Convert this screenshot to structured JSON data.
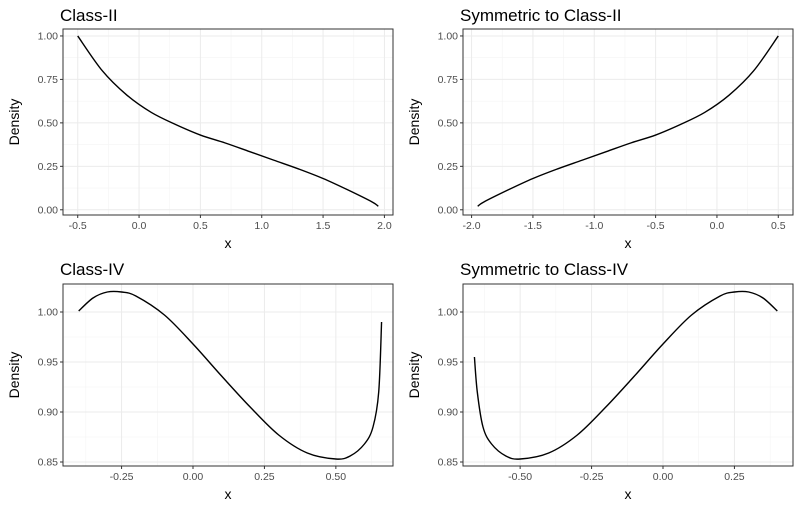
{
  "chart_data": [
    {
      "type": "line",
      "title": "Class-II",
      "xlabel": "x",
      "ylabel": "Density",
      "xlim": [
        -0.62,
        2.07
      ],
      "ylim": [
        -0.03,
        1.04
      ],
      "xticks": [
        -0.5,
        0.0,
        0.5,
        1.0,
        1.5,
        2.0
      ],
      "xtick_labels": [
        "-0.5",
        "0.0",
        "0.5",
        "1.0",
        "1.5",
        "2.0"
      ],
      "yticks": [
        0.0,
        0.25,
        0.5,
        0.75,
        1.0
      ],
      "ytick_labels": [
        "0.00",
        "0.25",
        "0.50",
        "0.75",
        "1.00"
      ],
      "grid": true,
      "series": [
        {
          "x": [
            -0.5,
            -0.3,
            -0.1,
            0.1,
            0.3,
            0.5,
            0.7,
            0.9,
            1.1,
            1.3,
            1.5,
            1.7,
            1.9,
            1.95
          ],
          "y": [
            1.0,
            0.8,
            0.66,
            0.56,
            0.49,
            0.43,
            0.385,
            0.335,
            0.285,
            0.235,
            0.18,
            0.115,
            0.045,
            0.02
          ]
        }
      ]
    },
    {
      "type": "line",
      "title": "Symmetric to Class-II",
      "xlabel": "x",
      "ylabel": "Density",
      "xlim": [
        -2.07,
        0.62
      ],
      "ylim": [
        -0.03,
        1.04
      ],
      "xticks": [
        -2.0,
        -1.5,
        -1.0,
        -0.5,
        0.0,
        0.5
      ],
      "xtick_labels": [
        "-2.0",
        "-1.5",
        "-1.0",
        "-0.5",
        "0.0",
        "0.5"
      ],
      "yticks": [
        0.0,
        0.25,
        0.5,
        0.75,
        1.0
      ],
      "ytick_labels": [
        "0.00",
        "0.25",
        "0.50",
        "0.75",
        "1.00"
      ],
      "grid": true,
      "series": [
        {
          "x": [
            -1.95,
            -1.9,
            -1.7,
            -1.5,
            -1.3,
            -1.1,
            -0.9,
            -0.7,
            -0.5,
            -0.3,
            -0.1,
            0.1,
            0.3,
            0.5
          ],
          "y": [
            0.02,
            0.045,
            0.115,
            0.18,
            0.235,
            0.285,
            0.335,
            0.385,
            0.43,
            0.49,
            0.56,
            0.66,
            0.8,
            1.0
          ]
        }
      ]
    },
    {
      "type": "line",
      "title": "Class-IV",
      "xlabel": "x",
      "ylabel": "Density",
      "xlim": [
        -0.455,
        0.7
      ],
      "ylim": [
        0.846,
        1.028
      ],
      "xticks": [
        -0.25,
        0.0,
        0.25,
        0.5
      ],
      "xtick_labels": [
        "-0.25",
        "0.00",
        "0.25",
        "0.50"
      ],
      "yticks": [
        0.85,
        0.9,
        0.95,
        1.0
      ],
      "ytick_labels": [
        "0.85",
        "0.90",
        "0.95",
        "1.00"
      ],
      "grid": true,
      "series": [
        {
          "x": [
            -0.4,
            -0.35,
            -0.3,
            -0.25,
            -0.2,
            -0.1,
            0.0,
            0.1,
            0.2,
            0.3,
            0.4,
            0.5,
            0.55,
            0.6,
            0.63,
            0.65,
            0.66
          ],
          "y": [
            1.001,
            1.014,
            1.02,
            1.02,
            1.016,
            0.997,
            0.968,
            0.936,
            0.905,
            0.877,
            0.859,
            0.853,
            0.856,
            0.868,
            0.885,
            0.92,
            0.99
          ]
        }
      ]
    },
    {
      "type": "line",
      "title": "Symmetric to Class-IV",
      "xlabel": "x",
      "ylabel": "Density",
      "xlim": [
        -0.7,
        0.455
      ],
      "ylim": [
        0.846,
        1.028
      ],
      "xticks": [
        -0.5,
        -0.25,
        0.0,
        0.25
      ],
      "xtick_labels": [
        "-0.50",
        "-0.25",
        "0.00",
        "0.25"
      ],
      "yticks": [
        0.85,
        0.9,
        0.95,
        1.0
      ],
      "ytick_labels": [
        "0.85",
        "0.90",
        "0.95",
        "1.00"
      ],
      "grid": true,
      "series": [
        {
          "x": [
            -0.66,
            -0.65,
            -0.63,
            -0.6,
            -0.55,
            -0.5,
            -0.4,
            -0.3,
            -0.2,
            -0.1,
            0.0,
            0.1,
            0.2,
            0.25,
            0.3,
            0.35,
            0.4
          ],
          "y": [
            0.955,
            0.92,
            0.885,
            0.868,
            0.856,
            0.853,
            0.859,
            0.877,
            0.905,
            0.936,
            0.968,
            0.997,
            1.016,
            1.02,
            1.02,
            1.014,
            1.001
          ]
        }
      ]
    }
  ]
}
